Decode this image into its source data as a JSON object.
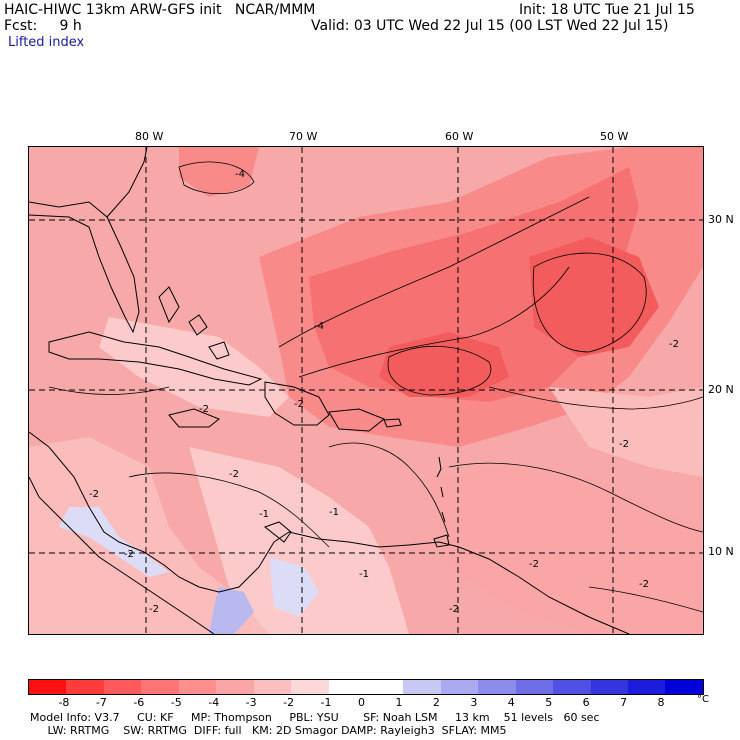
{
  "header": {
    "model_title": "HAIC-HIWC 13km ARW-GFS init   NCAR/MMM",
    "init": "Init: 18 UTC Tue 21 Jul 15",
    "fcst": "Fcst:     9 h",
    "valid": "Valid: 03 UTC Wed 22 Jul 15 (00 LST Wed 22 Jul 15)",
    "field": "Lifted index"
  },
  "map": {
    "lon_labels": [
      "80 W",
      "70 W",
      "60 W",
      "50 W"
    ],
    "lat_labels": [
      "30 N",
      "20 N",
      "10 N"
    ],
    "lon_lines": [
      -80,
      -70,
      -60,
      -50
    ],
    "lat_lines": [
      30,
      20,
      10
    ],
    "lon_range": [
      -88.1,
      -42.5
    ],
    "lat_range": [
      5,
      34.3
    ],
    "contour_labels": [
      "-4",
      "-4",
      "-2",
      "-2",
      "-2",
      "-2",
      "-2",
      "-2",
      "-2",
      "-1",
      "-1",
      "-1",
      "-2",
      "-2",
      "-2",
      "-2"
    ]
  },
  "colorbar": {
    "colors": [
      "#ff1010",
      "#ff3b3b",
      "#ff5a5a",
      "#ff7474",
      "#ff8e8e",
      "#fba6a6",
      "#fcbfbf",
      "#fdd8d8",
      "#ffffff",
      "#ffffff",
      "#c8c8f5",
      "#aaaaf0",
      "#8c8cec",
      "#6e6ee8",
      "#5050e4",
      "#3535e0",
      "#1c1cdc",
      "#0000d8"
    ],
    "labels": [
      "-8",
      "-7",
      "-6",
      "-5",
      "-4",
      "-3",
      "-2",
      "-1",
      "0",
      "1",
      "2",
      "3",
      "4",
      "5",
      "6",
      "7",
      "8"
    ],
    "unit": "°C"
  },
  "footer": {
    "line1": "Model Info: V3.7     CU: KF     MP: Thompson     PBL: YSU       SF: Noah LSM     13 km    51 levels   60 sec",
    "line2": "     LW: RRTMG    SW: RRTMG  DIFF: full   KM: 2D Smagor DAMP: Rayleigh3  SFLAY: MM5"
  }
}
